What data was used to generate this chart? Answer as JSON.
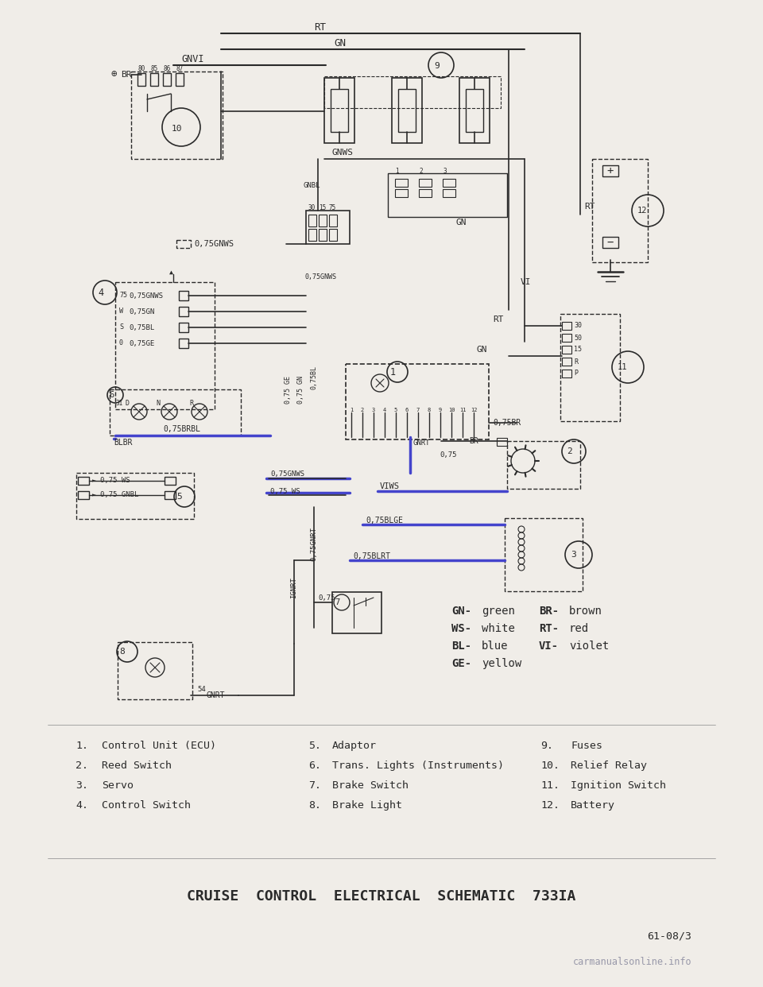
{
  "bg_color": "#f0ede8",
  "title": "CRUISE  CONTROL  ELECTRICAL  SCHEMATIC  733IA",
  "page_ref": "61-08/3",
  "watermark": "carmanualsonline.info",
  "legend_items": [
    [
      "GN-green",
      "BR-brown"
    ],
    [
      "WS-white",
      "RT-red"
    ],
    [
      "BL-blue",
      "VI-violet"
    ],
    [
      "GE-yellow",
      ""
    ]
  ],
  "numbered_items": [
    [
      "1.",
      "Control Unit (ECU)",
      "5.",
      "Adaptor",
      "9.",
      "Fuses"
    ],
    [
      "2.",
      "Reed Switch",
      "6.",
      "Trans. Lights (Instruments)",
      "10.",
      "Relief Relay"
    ],
    [
      "3.",
      "Servo",
      "7.",
      "Brake Switch",
      "11.",
      "Ignition Switch"
    ],
    [
      "4.",
      "Control Switch",
      "8.",
      "Brake Light",
      "12.",
      "Battery"
    ]
  ],
  "line_color": "#2a2a2a",
  "blue_wire": "#4444cc",
  "red_wire": "#cc2222"
}
